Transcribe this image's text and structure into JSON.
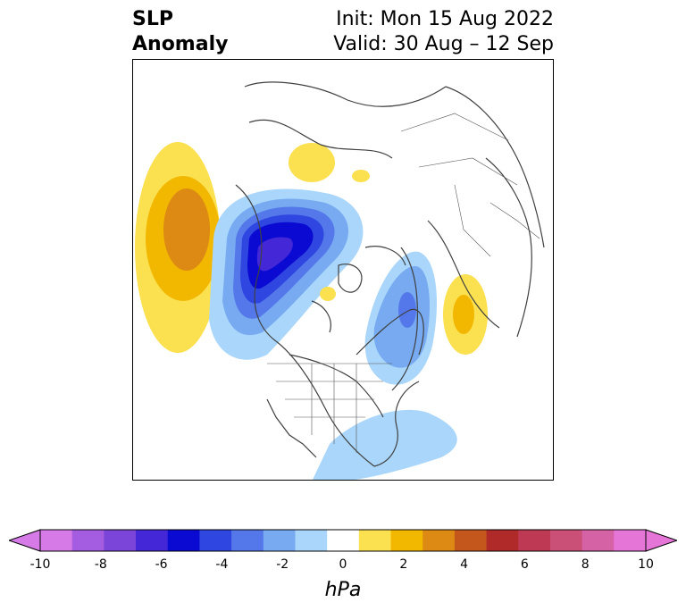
{
  "title": {
    "left_line1": "SLP",
    "left_line2": "Anomaly",
    "right_line1": "Init: Mon 15 Aug 2022",
    "right_line2": "Valid: 30 Aug – 12 Sep"
  },
  "colorbar": {
    "label": "hPa",
    "ticks": [
      "-10",
      "-8",
      "-6",
      "-4",
      "-2",
      "0",
      "2",
      "4",
      "6",
      "8",
      "10"
    ],
    "colors": [
      "#d57ae6",
      "#a45de0",
      "#7a45d8",
      "#4427d6",
      "#0a0ad2",
      "#2f46e0",
      "#5478ea",
      "#77aaf0",
      "#a9d6fa",
      "#ffffff",
      "#fbe050",
      "#f2b800",
      "#dc8a14",
      "#c4581c",
      "#b02a2a",
      "#be3a54",
      "#cb5078",
      "#d662a6",
      "#e675d8"
    ],
    "under_color": "#d57ae6",
    "over_color": "#e675d8"
  },
  "map": {
    "projection": "north-polar",
    "anomaly_centers": [
      {
        "region": "north-pacific",
        "value_max": 4
      },
      {
        "region": "central-canada",
        "value_min": -7
      },
      {
        "region": "siberia",
        "value_max": 2
      },
      {
        "region": "western-europe",
        "value_max": 3
      },
      {
        "region": "greenland-labrador",
        "value_min": -3
      },
      {
        "region": "western-atlantic",
        "value_min": -1
      }
    ]
  }
}
